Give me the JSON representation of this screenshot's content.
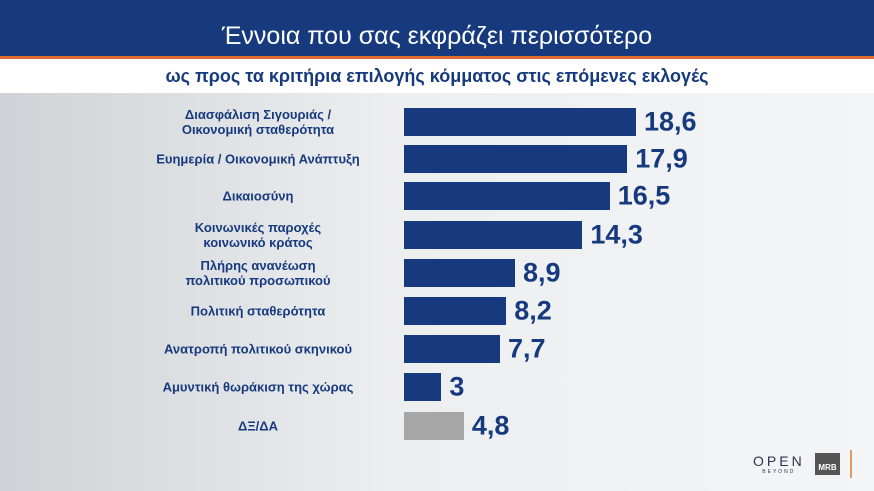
{
  "header": {
    "title": "Έννοια που σας εκφράζει περισσότερο",
    "subtitle": "ως προς τα κριτήρια επιλογής κόμματος στις επόμενες εκλογές"
  },
  "chart_data": {
    "type": "bar",
    "orientation": "horizontal",
    "categories": [
      "Διασφάλιση Σιγουριάς / Οικονομική σταθερότητα",
      "Ευημερία / Οικονομική Ανάπτυξη",
      "Δικαιοσύνη",
      "Κοινωνικές παροχές κοινωνικό κράτος",
      "Πλήρης ανανέωση πολιτικού προσωπικού",
      "Πολιτική σταθερότητα",
      "Ανατροπή πολιτικού σκηνικού",
      "Αμυντική θωράκιση της χώρας",
      "ΔΞ/ΔΑ"
    ],
    "values": [
      18.6,
      17.9,
      16.5,
      14.3,
      8.9,
      8.2,
      7.7,
      3,
      4.8
    ],
    "value_labels": [
      "18,6",
      "17,9",
      "16,5",
      "14,3",
      "8,9",
      "8,2",
      "7,7",
      "3",
      "4,8"
    ],
    "colors": [
      "#173a7e",
      "#173a7e",
      "#173a7e",
      "#173a7e",
      "#173a7e",
      "#173a7e",
      "#173a7e",
      "#173a7e",
      "#a6a6a6"
    ],
    "grid": false
  },
  "logos": [
    "OPEN BEYOND",
    "MRB"
  ]
}
